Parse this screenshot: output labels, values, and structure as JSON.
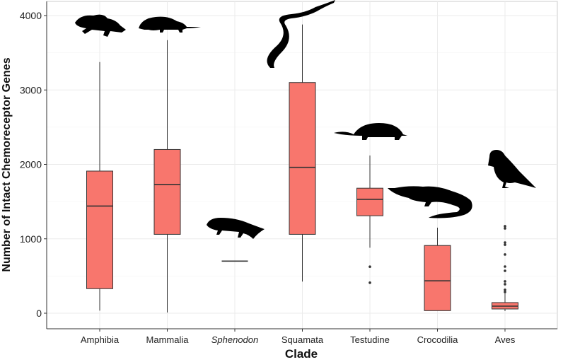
{
  "chart_data": {
    "type": "box",
    "title": "",
    "xlabel": "Clade",
    "ylabel": "Number of Intact Chemoreceptor Genes",
    "ylim": [
      -210,
      4190
    ],
    "yticks": [
      0,
      1000,
      2000,
      3000,
      4000
    ],
    "grid": true,
    "box_color": "#F8766D",
    "categories": [
      "Amphibia",
      "Mammalia",
      "Sphenodon",
      "Squamata",
      "Testudine",
      "Crocodilia",
      "Aves"
    ],
    "italic_categories": [
      "Sphenodon"
    ],
    "boxes": [
      {
        "name": "Amphibia",
        "min": 35,
        "q1": 330,
        "median": 1440,
        "q3": 1910,
        "max": 3375,
        "outliers": []
      },
      {
        "name": "Mammalia",
        "min": 10,
        "q1": 1060,
        "median": 1730,
        "q3": 2200,
        "max": 3670,
        "outliers": []
      },
      {
        "name": "Sphenodon",
        "min": 700,
        "q1": 700,
        "median": 700,
        "q3": 700,
        "max": 700,
        "outliers": []
      },
      {
        "name": "Squamata",
        "min": 425,
        "q1": 1060,
        "median": 1960,
        "q3": 3100,
        "max": 3880,
        "outliers": []
      },
      {
        "name": "Testudine",
        "min": 880,
        "q1": 1310,
        "median": 1530,
        "q3": 1680,
        "max": 2120,
        "outliers": [
          625,
          410
        ]
      },
      {
        "name": "Crocodilia",
        "min": 35,
        "q1": 35,
        "median": 435,
        "q3": 910,
        "max": 1150,
        "outliers": []
      },
      {
        "name": "Aves",
        "min": 28,
        "q1": 57,
        "median": 95,
        "q3": 143,
        "max": 266,
        "outliers": [
          1169,
          1140,
          950,
          920,
          789,
          627,
          570,
          428,
          390,
          314,
          285
        ]
      }
    ]
  }
}
